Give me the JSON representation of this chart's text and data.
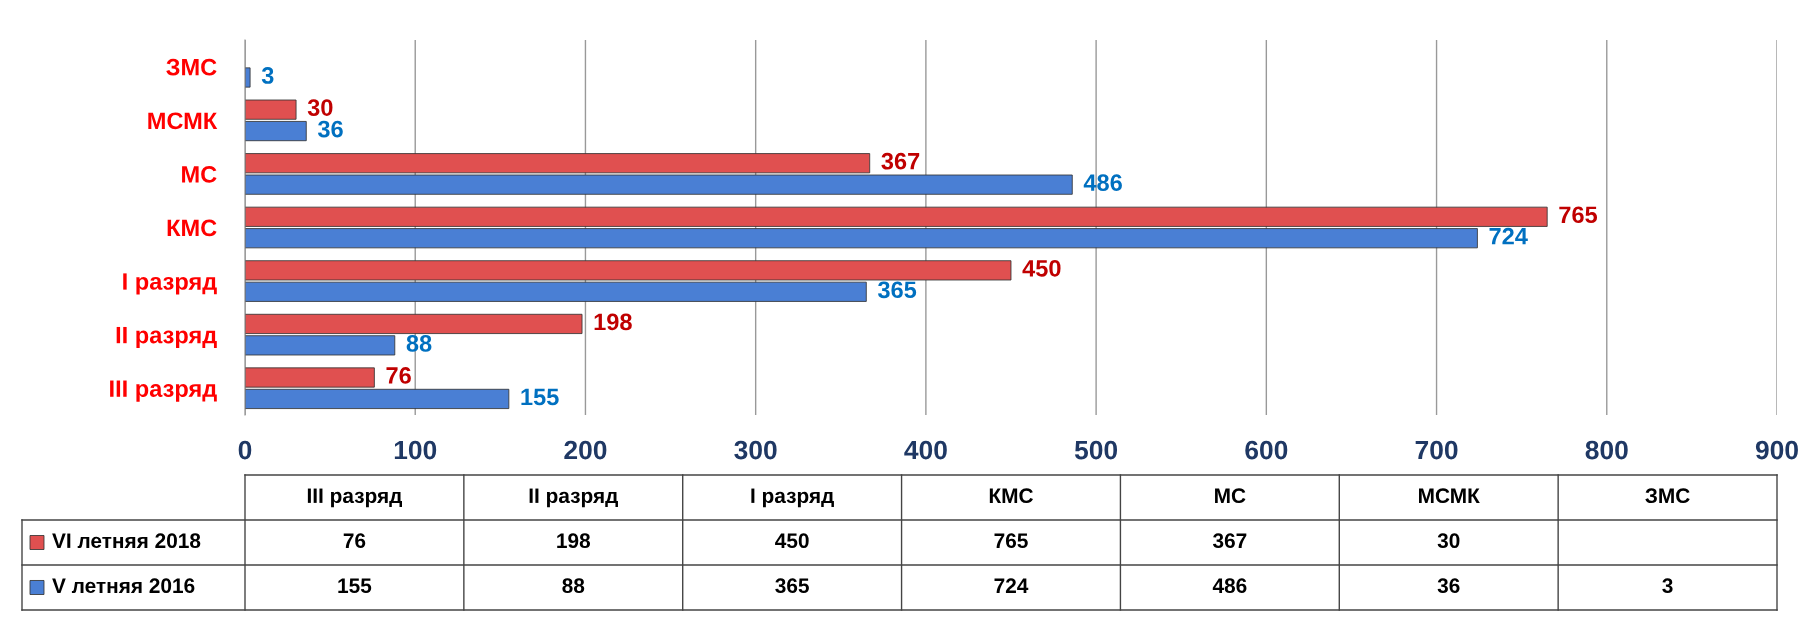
{
  "chart_data": [
    {
      "type": "bar",
      "orientation": "horizontal",
      "categories": [
        "ЗМС",
        "МСМК",
        "МС",
        "КМС",
        "I разряд",
        "II разряд",
        "III разряд"
      ],
      "series": [
        {
          "color": "#e05050",
          "values": [
            null,
            30,
            367,
            765,
            450,
            198,
            76
          ]
        },
        {
          "color": "#4a7fd4",
          "values": [
            3,
            36,
            486,
            724,
            365,
            88,
            155
          ]
        }
      ],
      "xlim": [
        0,
        900
      ],
      "xticks": [
        0,
        100,
        200,
        300,
        400,
        500,
        600,
        700,
        800,
        900
      ],
      "grid": "x",
      "data_labels": true
    },
    {
      "type": "other",
      "categories": [
        "III разряд",
        "II разряд",
        "I разряд",
        "КМС",
        "МС",
        "МСМК",
        "ЗМС"
      ],
      "series": [
        {
          "name": "VI летняя 2018",
          "color": "#e05050",
          "values": [
            76,
            198,
            450,
            765,
            367,
            30,
            null
          ]
        },
        {
          "name": "V летняя 2016",
          "color": "#4a7fd4",
          "values": [
            155,
            88,
            365,
            724,
            486,
            36,
            3
          ]
        }
      ],
      "data_labels": true,
      "legend": "left"
    }
  ]
}
